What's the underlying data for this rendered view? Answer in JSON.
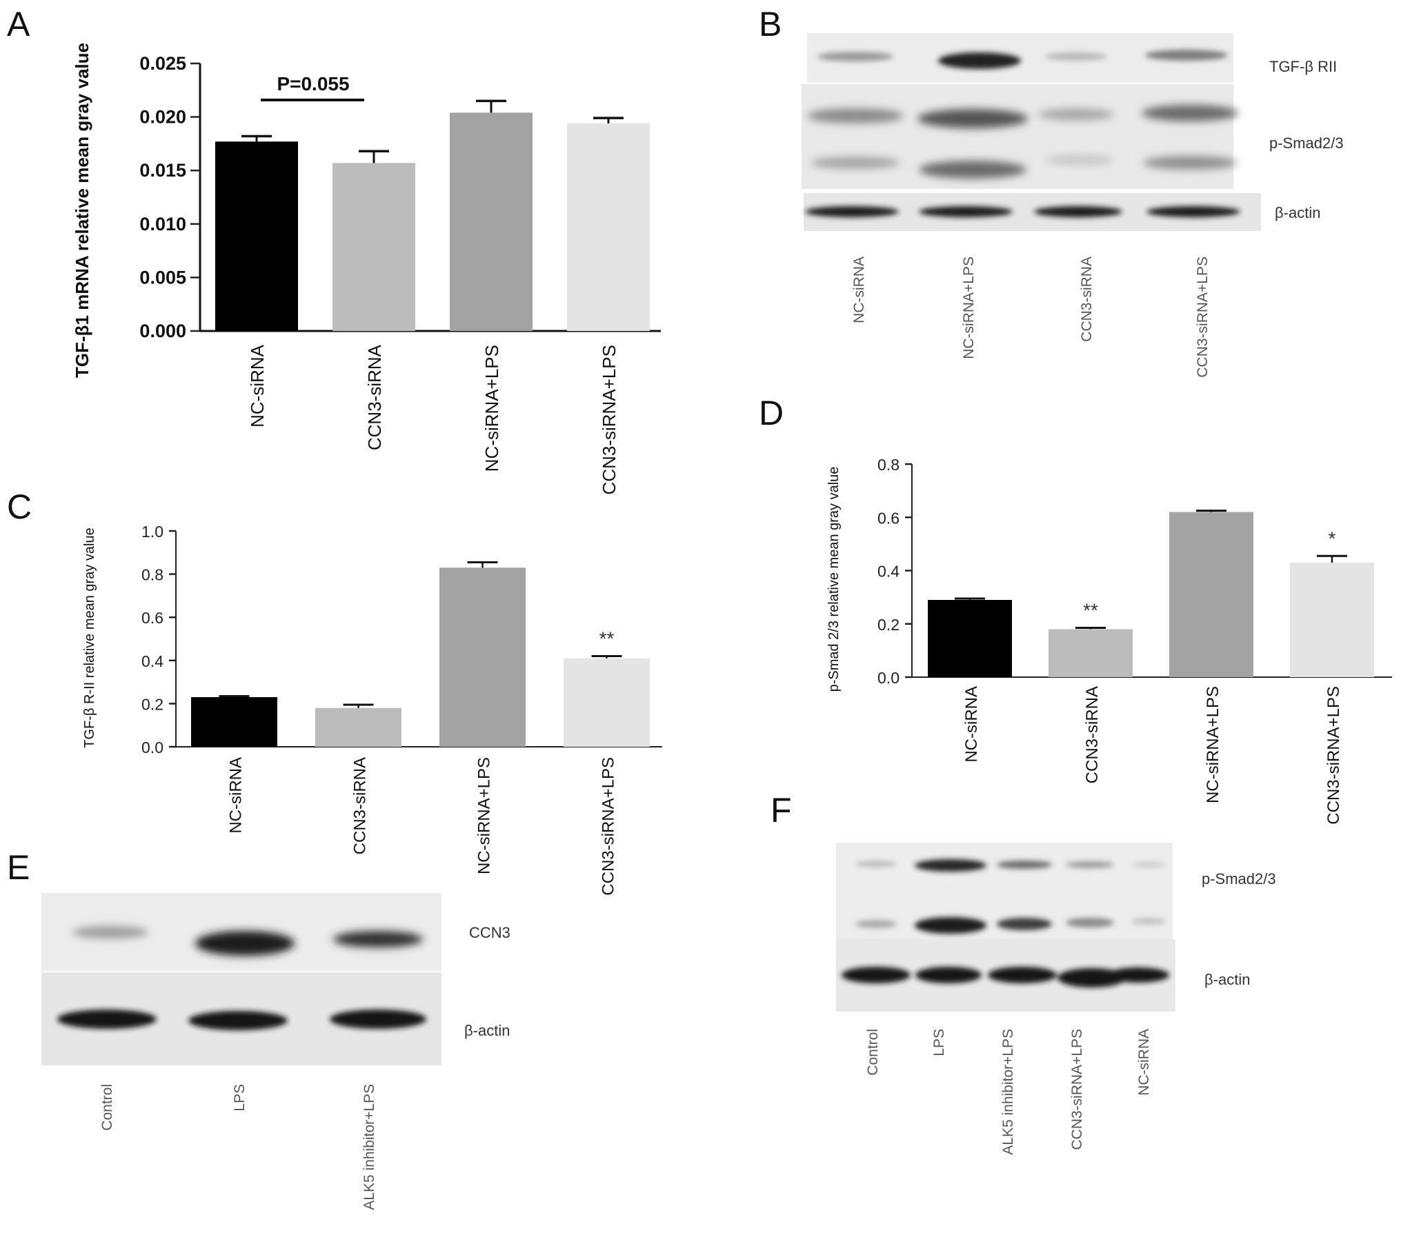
{
  "chart_data": [
    {
      "panel": "A",
      "type": "bar",
      "ylabel": "TGF-β1 mRNA relative mean gray value",
      "ylim": [
        0,
        0.025
      ],
      "yticks": [
        "0.000",
        "0.005",
        "0.010",
        "0.015",
        "0.020",
        "0.025"
      ],
      "categories": [
        "NC-siRNA",
        "CCN3-siRNA",
        "NC-siRNA+LPS",
        "CCN3-siRNA+LPS"
      ],
      "values": [
        0.0177,
        0.0157,
        0.0204,
        0.0194
      ],
      "errors": [
        0.0005,
        0.0011,
        0.0011,
        0.0005
      ],
      "colors": [
        "#000000",
        "#bcbcbc",
        "#a3a3a3",
        "#e4e4e4"
      ],
      "annotation": "P=0.055",
      "stars": [
        "",
        "",
        "",
        ""
      ]
    },
    {
      "panel": "C",
      "type": "bar",
      "ylabel": "TGF-β R-II relative mean gray value",
      "ylim": [
        0,
        1.0
      ],
      "yticks": [
        "0.0",
        "0.2",
        "0.4",
        "0.6",
        "0.8",
        "1.0"
      ],
      "categories": [
        "NC-siRNA",
        "CCN3-siRNA",
        "NC-siRNA+LPS",
        "CCN3-siRNA+LPS"
      ],
      "values": [
        0.23,
        0.18,
        0.83,
        0.41
      ],
      "errors": [
        0.005,
        0.015,
        0.025,
        0.01
      ],
      "colors": [
        "#000000",
        "#bcbcbc",
        "#a3a3a3",
        "#e4e4e4"
      ],
      "stars": [
        "",
        "",
        "",
        "**"
      ]
    },
    {
      "panel": "D",
      "type": "bar",
      "ylabel": "p-Smad 2/3 relative mean gray value",
      "ylim": [
        0,
        0.8
      ],
      "yticks": [
        "0.0",
        "0.2",
        "0.4",
        "0.6",
        "0.8"
      ],
      "categories": [
        "NC-siRNA",
        "CCN3-siRNA",
        "NC-siRNA+LPS",
        "CCN3-siRNA+LPS"
      ],
      "values": [
        0.29,
        0.18,
        0.62,
        0.43
      ],
      "errors": [
        0.005,
        0.005,
        0.005,
        0.025
      ],
      "colors": [
        "#000000",
        "#bcbcbc",
        "#a3a3a3",
        "#e4e4e4"
      ],
      "stars": [
        "",
        "**",
        "",
        "*"
      ]
    }
  ],
  "panels": {
    "a": "A",
    "b": "B",
    "c": "C",
    "d": "D",
    "e": "E",
    "f": "F"
  },
  "blot_b": {
    "band_labels": [
      "TGF-β RII",
      "p-Smad2/3",
      "β-actin"
    ],
    "lanes": [
      "NC-siRNA",
      "NC-siRNA+LPS",
      "CCN3-siRNA",
      "CCN3-siRNA+LPS"
    ]
  },
  "blot_e": {
    "band_labels": [
      "CCN3",
      "β-actin"
    ],
    "lanes": [
      "Control",
      "LPS",
      "ALK5 inhibitor+LPS"
    ]
  },
  "blot_f": {
    "band_labels": [
      "p-Smad2/3",
      "β-actin"
    ],
    "lanes": [
      "Control",
      "LPS",
      "ALK5 inhibitor+LPS",
      "CCN3-siRNA+LPS",
      "NC-siRNA"
    ]
  }
}
